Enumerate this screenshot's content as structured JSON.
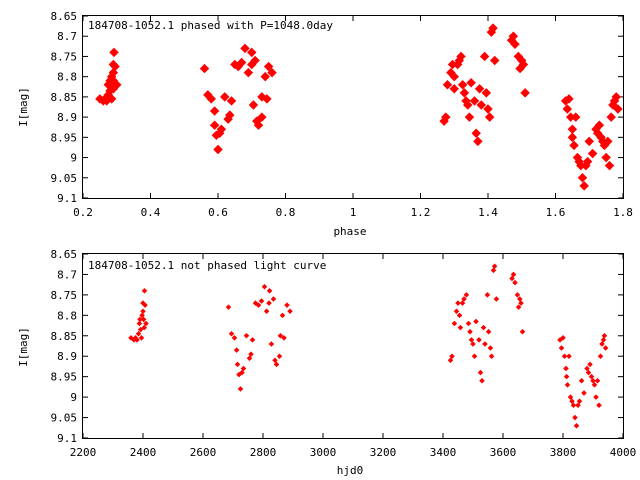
{
  "chart_data": [
    {
      "type": "scatter",
      "title": "184708-1052.1 phased with P=1048.0day",
      "xlabel": "phase",
      "ylabel": "I[mag]",
      "xlim": [
        0.2,
        1.8
      ],
      "ylim": [
        9.1,
        8.65
      ],
      "y_inverted": true,
      "xticks": [
        "0.2",
        "0.4",
        "0.6",
        "0.8",
        "1",
        "1.2",
        "1.4",
        "1.6",
        "1.8"
      ],
      "yticks": [
        "8.65",
        "8.7",
        "8.75",
        "8.8",
        "8.85",
        "8.9",
        "8.95",
        "9",
        "9.05",
        "9.1"
      ],
      "marker_color": "#ff0000",
      "marker": "large",
      "points": [
        [
          0.25,
          8.855
        ],
        [
          0.26,
          8.86
        ],
        [
          0.265,
          8.855
        ],
        [
          0.27,
          8.86
        ],
        [
          0.275,
          8.845
        ],
        [
          0.275,
          8.82
        ],
        [
          0.28,
          8.81
        ],
        [
          0.28,
          8.835
        ],
        [
          0.285,
          8.855
        ],
        [
          0.285,
          8.8
        ],
        [
          0.29,
          8.77
        ],
        [
          0.29,
          8.79
        ],
        [
          0.29,
          8.81
        ],
        [
          0.29,
          8.83
        ],
        [
          0.292,
          8.74
        ],
        [
          0.295,
          8.775
        ],
        [
          0.3,
          8.82
        ],
        [
          0.56,
          8.78
        ],
        [
          0.57,
          8.845
        ],
        [
          0.58,
          8.855
        ],
        [
          0.59,
          8.885
        ],
        [
          0.59,
          8.92
        ],
        [
          0.595,
          8.945
        ],
        [
          0.6,
          8.98
        ],
        [
          0.605,
          8.94
        ],
        [
          0.61,
          8.93
        ],
        [
          0.62,
          8.85
        ],
        [
          0.63,
          8.905
        ],
        [
          0.635,
          8.895
        ],
        [
          0.64,
          8.86
        ],
        [
          0.65,
          8.77
        ],
        [
          0.66,
          8.775
        ],
        [
          0.67,
          8.765
        ],
        [
          0.68,
          8.73
        ],
        [
          0.69,
          8.79
        ],
        [
          0.7,
          8.77
        ],
        [
          0.7,
          8.74
        ],
        [
          0.705,
          8.87
        ],
        [
          0.71,
          8.76
        ],
        [
          0.715,
          8.91
        ],
        [
          0.72,
          8.92
        ],
        [
          0.73,
          8.9
        ],
        [
          0.73,
          8.85
        ],
        [
          0.74,
          8.8
        ],
        [
          0.745,
          8.855
        ],
        [
          0.75,
          8.775
        ],
        [
          0.76,
          8.79
        ],
        [
          1.27,
          8.91
        ],
        [
          1.275,
          8.9
        ],
        [
          1.28,
          8.82
        ],
        [
          1.29,
          8.79
        ],
        [
          1.295,
          8.77
        ],
        [
          1.3,
          8.8
        ],
        [
          1.3,
          8.83
        ],
        [
          1.31,
          8.77
        ],
        [
          1.315,
          8.76
        ],
        [
          1.32,
          8.75
        ],
        [
          1.325,
          8.82
        ],
        [
          1.33,
          8.84
        ],
        [
          1.335,
          8.86
        ],
        [
          1.34,
          8.87
        ],
        [
          1.345,
          8.9
        ],
        [
          1.35,
          8.815
        ],
        [
          1.36,
          8.86
        ],
        [
          1.365,
          8.94
        ],
        [
          1.37,
          8.96
        ],
        [
          1.375,
          8.83
        ],
        [
          1.38,
          8.87
        ],
        [
          1.39,
          8.75
        ],
        [
          1.395,
          8.84
        ],
        [
          1.4,
          8.88
        ],
        [
          1.405,
          8.9
        ],
        [
          1.41,
          8.69
        ],
        [
          1.415,
          8.68
        ],
        [
          1.42,
          8.76
        ],
        [
          1.47,
          8.71
        ],
        [
          1.475,
          8.7
        ],
        [
          1.48,
          8.72
        ],
        [
          1.49,
          8.75
        ],
        [
          1.495,
          8.78
        ],
        [
          1.5,
          8.76
        ],
        [
          1.505,
          8.77
        ],
        [
          1.51,
          8.84
        ],
        [
          1.63,
          8.86
        ],
        [
          1.635,
          8.88
        ],
        [
          1.64,
          8.855
        ],
        [
          1.645,
          8.9
        ],
        [
          1.65,
          8.93
        ],
        [
          1.65,
          8.95
        ],
        [
          1.655,
          8.97
        ],
        [
          1.66,
          8.9
        ],
        [
          1.665,
          9.0
        ],
        [
          1.67,
          9.01
        ],
        [
          1.675,
          9.02
        ],
        [
          1.68,
          9.05
        ],
        [
          1.685,
          9.07
        ],
        [
          1.69,
          9.02
        ],
        [
          1.695,
          9.01
        ],
        [
          1.7,
          8.96
        ],
        [
          1.71,
          8.99
        ],
        [
          1.72,
          8.93
        ],
        [
          1.725,
          8.94
        ],
        [
          1.73,
          8.92
        ],
        [
          1.735,
          8.95
        ],
        [
          1.74,
          8.96
        ],
        [
          1.745,
          8.97
        ],
        [
          1.75,
          9.0
        ],
        [
          1.755,
          8.96
        ],
        [
          1.76,
          9.02
        ],
        [
          1.765,
          8.9
        ],
        [
          1.77,
          8.87
        ],
        [
          1.775,
          8.86
        ],
        [
          1.78,
          8.85
        ],
        [
          1.785,
          8.88
        ]
      ]
    },
    {
      "type": "scatter",
      "title": "184708-1052.1 not phased light curve",
      "xlabel": "hjd0",
      "ylabel": "I[mag]",
      "xlim": [
        2200,
        4000
      ],
      "ylim": [
        9.1,
        8.65
      ],
      "y_inverted": true,
      "xticks": [
        "2200",
        "2400",
        "2600",
        "2800",
        "3000",
        "3200",
        "3400",
        "3600",
        "3800",
        "4000"
      ],
      "yticks": [
        "8.65",
        "8.7",
        "8.75",
        "8.8",
        "8.85",
        "8.9",
        "8.95",
        "9",
        "9.05",
        "9.1"
      ],
      "marker_color": "#ff0000",
      "marker": "small",
      "points": [
        [
          2360,
          8.855
        ],
        [
          2370,
          8.86
        ],
        [
          2375,
          8.855
        ],
        [
          2380,
          8.86
        ],
        [
          2385,
          8.845
        ],
        [
          2388,
          8.82
        ],
        [
          2390,
          8.81
        ],
        [
          2392,
          8.835
        ],
        [
          2395,
          8.855
        ],
        [
          2397,
          8.8
        ],
        [
          2400,
          8.77
        ],
        [
          2400,
          8.79
        ],
        [
          2402,
          8.81
        ],
        [
          2404,
          8.83
        ],
        [
          2405,
          8.74
        ],
        [
          2407,
          8.775
        ],
        [
          2410,
          8.82
        ],
        [
          2685,
          8.78
        ],
        [
          2695,
          8.845
        ],
        [
          2705,
          8.855
        ],
        [
          2712,
          8.885
        ],
        [
          2715,
          8.92
        ],
        [
          2720,
          8.945
        ],
        [
          2725,
          8.98
        ],
        [
          2730,
          8.94
        ],
        [
          2735,
          8.93
        ],
        [
          2745,
          8.85
        ],
        [
          2755,
          8.905
        ],
        [
          2760,
          8.895
        ],
        [
          2765,
          8.86
        ],
        [
          2775,
          8.77
        ],
        [
          2785,
          8.775
        ],
        [
          2795,
          8.765
        ],
        [
          2805,
          8.73
        ],
        [
          2812,
          8.79
        ],
        [
          2820,
          8.77
        ],
        [
          2822,
          8.74
        ],
        [
          2828,
          8.87
        ],
        [
          2835,
          8.76
        ],
        [
          2840,
          8.91
        ],
        [
          2845,
          8.92
        ],
        [
          2855,
          8.9
        ],
        [
          2858,
          8.85
        ],
        [
          2865,
          8.8
        ],
        [
          2870,
          8.855
        ],
        [
          2880,
          8.775
        ],
        [
          2890,
          8.79
        ],
        [
          3425,
          8.91
        ],
        [
          3430,
          8.9
        ],
        [
          3438,
          8.82
        ],
        [
          3445,
          8.79
        ],
        [
          3450,
          8.77
        ],
        [
          3455,
          8.8
        ],
        [
          3458,
          8.83
        ],
        [
          3465,
          8.77
        ],
        [
          3470,
          8.76
        ],
        [
          3478,
          8.75
        ],
        [
          3485,
          8.82
        ],
        [
          3490,
          8.84
        ],
        [
          3495,
          8.86
        ],
        [
          3500,
          8.87
        ],
        [
          3505,
          8.9
        ],
        [
          3510,
          8.815
        ],
        [
          3520,
          8.86
        ],
        [
          3525,
          8.94
        ],
        [
          3530,
          8.96
        ],
        [
          3535,
          8.83
        ],
        [
          3540,
          8.87
        ],
        [
          3548,
          8.75
        ],
        [
          3552,
          8.84
        ],
        [
          3558,
          8.88
        ],
        [
          3562,
          8.9
        ],
        [
          3568,
          8.69
        ],
        [
          3572,
          8.68
        ],
        [
          3578,
          8.76
        ],
        [
          3630,
          8.71
        ],
        [
          3635,
          8.7
        ],
        [
          3640,
          8.72
        ],
        [
          3648,
          8.75
        ],
        [
          3652,
          8.78
        ],
        [
          3656,
          8.76
        ],
        [
          3660,
          8.77
        ],
        [
          3665,
          8.84
        ],
        [
          3790,
          8.86
        ],
        [
          3795,
          8.88
        ],
        [
          3800,
          8.855
        ],
        [
          3805,
          8.9
        ],
        [
          3810,
          8.93
        ],
        [
          3812,
          8.95
        ],
        [
          3815,
          8.97
        ],
        [
          3820,
          8.9
        ],
        [
          3825,
          9.0
        ],
        [
          3830,
          9.01
        ],
        [
          3835,
          9.02
        ],
        [
          3840,
          9.05
        ],
        [
          3845,
          9.07
        ],
        [
          3850,
          9.02
        ],
        [
          3855,
          9.01
        ],
        [
          3862,
          8.96
        ],
        [
          3870,
          8.99
        ],
        [
          3880,
          8.93
        ],
        [
          3885,
          8.94
        ],
        [
          3890,
          8.92
        ],
        [
          3895,
          8.95
        ],
        [
          3900,
          8.96
        ],
        [
          3905,
          8.97
        ],
        [
          3910,
          9.0
        ],
        [
          3915,
          8.96
        ],
        [
          3920,
          9.02
        ],
        [
          3925,
          8.9
        ],
        [
          3930,
          8.87
        ],
        [
          3935,
          8.86
        ],
        [
          3938,
          8.85
        ],
        [
          3942,
          8.88
        ]
      ]
    }
  ]
}
